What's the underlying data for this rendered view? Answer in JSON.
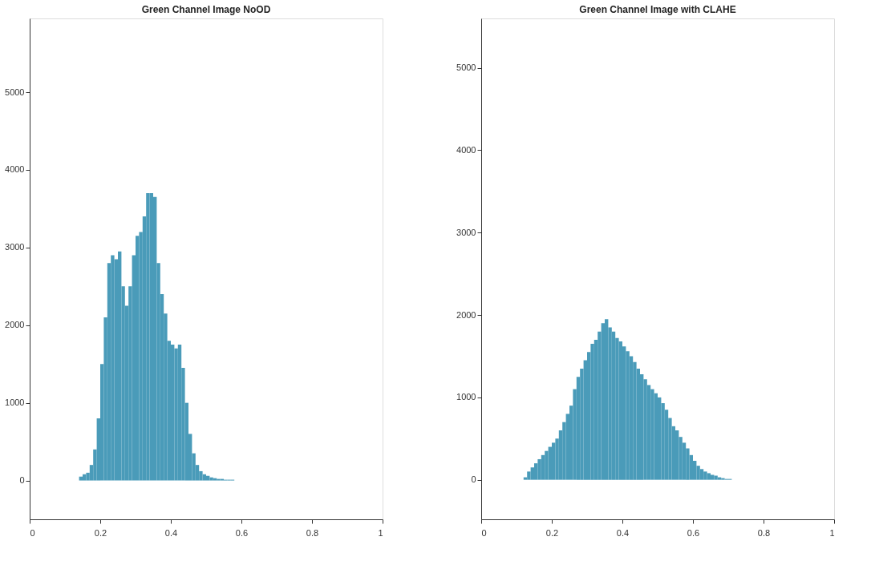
{
  "chart_data": [
    {
      "type": "histogram",
      "title": "Green Channel Image NoOD",
      "color": "#4a9bb9",
      "bins": [
        0,
        0.01,
        0.02,
        0.03,
        0.04,
        0.05,
        0.06,
        0.07,
        0.08,
        0.09,
        0.1,
        0.11,
        0.12,
        0.13,
        0.14,
        0.15,
        0.16,
        0.17,
        0.18,
        0.19,
        0.2,
        0.21,
        0.22,
        0.23,
        0.24,
        0.25,
        0.26,
        0.27,
        0.28,
        0.29,
        0.3,
        0.31,
        0.32,
        0.33,
        0.34,
        0.35,
        0.36,
        0.37,
        0.38,
        0.39,
        0.4,
        0.41,
        0.42,
        0.43,
        0.44,
        0.45,
        0.46,
        0.47,
        0.48,
        0.49,
        0.5,
        0.51,
        0.52,
        0.53,
        0.54,
        0.55,
        0.56,
        0.57,
        0.58,
        0.59,
        0.6,
        0.61,
        0.62,
        0.63,
        0.64,
        0.65,
        0.66,
        0.67,
        0.68,
        0.69,
        0.7,
        0.71,
        0.72,
        0.73,
        0.74,
        0.75,
        0.76,
        0.77,
        0.78,
        0.79,
        0.8,
        0.81,
        0.82,
        0.83,
        0.84,
        0.85,
        0.86,
        0.87,
        0.88,
        0.89,
        0.9,
        0.91,
        0.92,
        0.93,
        0.94,
        0.95,
        0.96,
        0.97,
        0.98,
        0.99,
        1
      ],
      "values": [
        0,
        0,
        0,
        0,
        0,
        0,
        0,
        0,
        0,
        0,
        0,
        0,
        0,
        0,
        50,
        80,
        100,
        200,
        400,
        800,
        1500,
        2100,
        2800,
        2900,
        2850,
        2950,
        2500,
        2250,
        2500,
        2900,
        3150,
        3200,
        3400,
        3700,
        3700,
        3650,
        2800,
        2400,
        2150,
        1800,
        1750,
        1700,
        1750,
        1450,
        1000,
        600,
        350,
        200,
        120,
        80,
        60,
        40,
        30,
        20,
        20,
        10,
        10,
        10,
        0,
        0,
        0,
        0,
        0,
        0,
        0,
        0,
        0,
        0,
        0,
        0,
        0,
        0,
        0,
        0,
        0,
        0,
        0,
        0,
        0,
        0,
        0,
        0,
        0,
        0,
        0,
        0,
        0,
        0,
        0,
        0,
        0,
        0,
        0,
        0,
        0,
        0,
        0,
        0,
        0,
        0
      ],
      "xlim": [
        0,
        1
      ],
      "xticks": [
        0,
        0.2,
        0.4,
        0.6,
        0.8,
        1
      ],
      "ylim": [
        -500,
        5950
      ],
      "yticks": [
        0,
        1000,
        2000,
        3000,
        4000,
        5000
      ],
      "grid": false
    },
    {
      "type": "histogram",
      "title": "Green Channel Image with CLAHE",
      "color": "#4a9bb9",
      "bins": [
        0,
        0.01,
        0.02,
        0.03,
        0.04,
        0.05,
        0.06,
        0.07,
        0.08,
        0.09,
        0.1,
        0.11,
        0.12,
        0.13,
        0.14,
        0.15,
        0.16,
        0.17,
        0.18,
        0.19,
        0.2,
        0.21,
        0.22,
        0.23,
        0.24,
        0.25,
        0.26,
        0.27,
        0.28,
        0.29,
        0.3,
        0.31,
        0.32,
        0.33,
        0.34,
        0.35,
        0.36,
        0.37,
        0.38,
        0.39,
        0.4,
        0.41,
        0.42,
        0.43,
        0.44,
        0.45,
        0.46,
        0.47,
        0.48,
        0.49,
        0.5,
        0.51,
        0.52,
        0.53,
        0.54,
        0.55,
        0.56,
        0.57,
        0.58,
        0.59,
        0.6,
        0.61,
        0.62,
        0.63,
        0.64,
        0.65,
        0.66,
        0.67,
        0.68,
        0.69,
        0.7,
        0.71,
        0.72,
        0.73,
        0.74,
        0.75,
        0.76,
        0.77,
        0.78,
        0.79,
        0.8,
        0.81,
        0.82,
        0.83,
        0.84,
        0.85,
        0.86,
        0.87,
        0.88,
        0.89,
        0.9,
        0.91,
        0.92,
        0.93,
        0.94,
        0.95,
        0.96,
        0.97,
        0.98,
        0.99,
        1
      ],
      "values": [
        0,
        0,
        0,
        0,
        0,
        0,
        0,
        0,
        0,
        0,
        0,
        0,
        30,
        100,
        150,
        200,
        250,
        300,
        350,
        400,
        450,
        500,
        600,
        700,
        800,
        900,
        1100,
        1250,
        1350,
        1450,
        1550,
        1650,
        1700,
        1800,
        1900,
        1950,
        1850,
        1800,
        1720,
        1680,
        1620,
        1560,
        1500,
        1430,
        1350,
        1280,
        1220,
        1150,
        1100,
        1050,
        1000,
        930,
        850,
        750,
        650,
        600,
        520,
        450,
        380,
        300,
        230,
        170,
        130,
        100,
        80,
        60,
        50,
        30,
        20,
        10,
        10,
        0,
        0,
        0,
        0,
        0,
        0,
        0,
        0,
        0,
        0,
        0,
        0,
        0,
        0,
        0,
        0,
        0,
        0,
        0,
        0,
        0,
        0,
        0,
        0,
        0,
        0,
        0,
        0,
        0
      ],
      "xlim": [
        0,
        1
      ],
      "xticks": [
        0,
        0.2,
        0.4,
        0.6,
        0.8,
        1
      ],
      "ylim": [
        -480,
        5600
      ],
      "yticks": [
        0,
        1000,
        2000,
        3000,
        4000,
        5000
      ],
      "grid": false
    }
  ]
}
